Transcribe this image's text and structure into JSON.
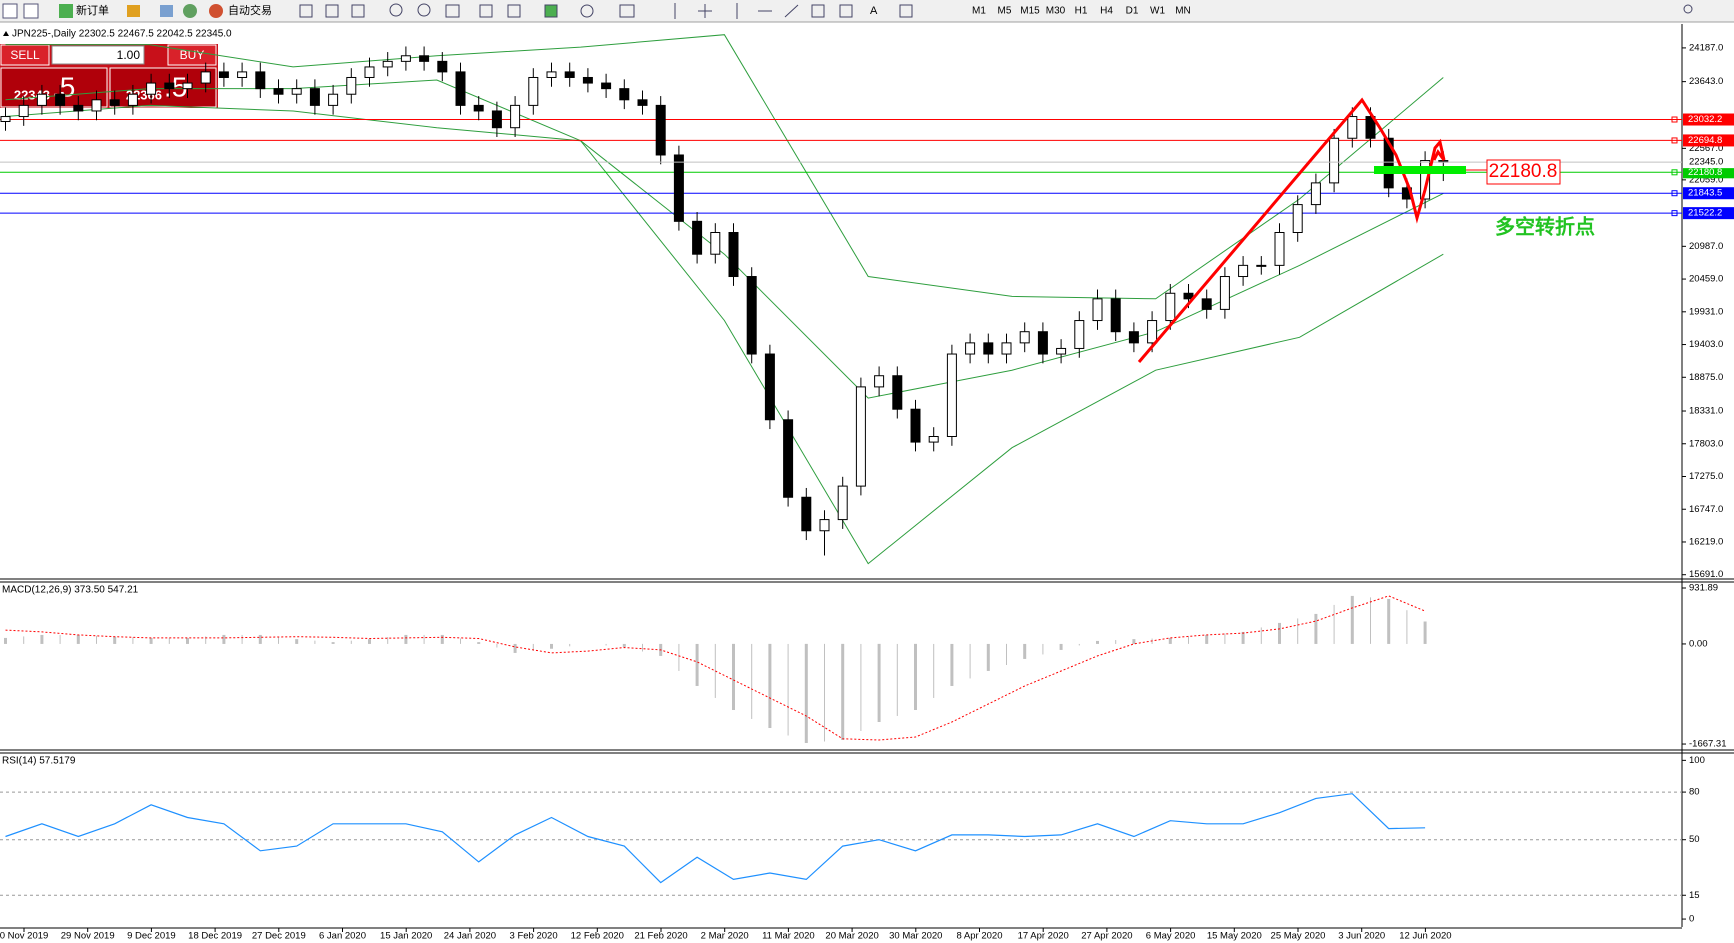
{
  "toolbar": {
    "new_order": "新订单",
    "auto_trading": "自动交易",
    "text_tool": "A",
    "timeframes": [
      "M1",
      "M5",
      "M15",
      "M30",
      "H1",
      "H4",
      "D1",
      "W1",
      "MN"
    ]
  },
  "order_panel": {
    "sell": "SELL",
    "lots": "1.00",
    "buy": "BUY",
    "bid_big": "22343",
    "bid_small": ".5",
    "ask_big": "22366",
    "ask_small": ".5"
  },
  "date_labels": [
    "0 Nov 2019",
    "29 Nov 2019",
    "9 Dec 2019",
    "18 Dec 2019",
    "27 Dec 2019",
    "6 Jan 2020",
    "15 Jan 2020",
    "24 Jan 2020",
    "3 Feb 2020",
    "12 Feb 2020",
    "21 Feb 2020",
    "2 Mar 2020",
    "11 Mar 2020",
    "20 Mar 2020",
    "30 Mar 2020",
    "8 Apr 2020",
    "17 Apr 2020",
    "27 Apr 2020",
    "6 May 2020",
    "15 May 2020",
    "25 May 2020",
    "3 Jun 2020",
    "12 Jun 2020"
  ],
  "annotations": [
    "22180.8",
    "多空转折点"
  ],
  "chart_data": [
    {
      "type": "candlestick",
      "title": "JPN225-,Daily 22302.5 22467.5 22042.5 22345.0",
      "open": [
        23000,
        23080,
        23260,
        23440,
        23260,
        23170,
        23350,
        23260,
        23440,
        23620,
        23530,
        23620,
        23800,
        23710,
        23800,
        23530,
        23440,
        23530,
        23260,
        23440,
        23710,
        23880,
        23970,
        24060,
        23970,
        23800,
        23260,
        23170,
        22900,
        23260,
        23710,
        23800,
        23710,
        23620,
        23530,
        23350,
        23260,
        22460,
        21390,
        20860,
        21210,
        20500,
        19250,
        18190,
        16940,
        16400,
        16580,
        17120,
        18720,
        18900,
        18360,
        17830,
        17920,
        19250,
        19430,
        19250,
        19430,
        19610,
        19250,
        19340,
        19790,
        20140,
        19610,
        19430,
        19790,
        20230,
        20140,
        19970,
        20500,
        20680,
        20680,
        21210,
        21660,
        22010,
        22730,
        23080,
        22730,
        21930,
        21750,
        22370
      ],
      "high": [
        23230,
        23410,
        23590,
        23590,
        23410,
        23500,
        23500,
        23590,
        23770,
        23770,
        23770,
        23950,
        23950,
        23950,
        23950,
        23680,
        23680,
        23680,
        23590,
        23860,
        24030,
        24120,
        24210,
        24210,
        24120,
        23950,
        23410,
        23320,
        23410,
        23860,
        23950,
        23950,
        23860,
        23770,
        23680,
        23500,
        23410,
        22610,
        21540,
        21360,
        21360,
        20650,
        19400,
        18340,
        17090,
        16730,
        17270,
        18870,
        19050,
        19050,
        18510,
        18070,
        19400,
        19580,
        19580,
        19580,
        19760,
        19760,
        19490,
        19940,
        20290,
        20290,
        19760,
        19940,
        20380,
        20380,
        20290,
        20650,
        20830,
        20830,
        21360,
        21810,
        22160,
        22880,
        23230,
        23230,
        22880,
        22080,
        22520,
        22520
      ],
      "low": [
        22850,
        22930,
        23110,
        23110,
        23020,
        23020,
        23110,
        23110,
        23290,
        23380,
        23380,
        23470,
        23560,
        23560,
        23380,
        23290,
        23290,
        23110,
        23110,
        23290,
        23560,
        23730,
        23820,
        23820,
        23650,
        23110,
        23020,
        22750,
        22750,
        23110,
        23560,
        23560,
        23470,
        23380,
        23200,
        23110,
        22310,
        21240,
        20710,
        20710,
        20350,
        19100,
        18040,
        16790,
        16250,
        16000,
        16430,
        16970,
        18570,
        18210,
        17680,
        17680,
        17770,
        19100,
        19100,
        19100,
        19280,
        19100,
        19100,
        19190,
        19640,
        19460,
        19280,
        19280,
        19640,
        19990,
        19820,
        19820,
        20350,
        20530,
        20530,
        21060,
        21510,
        21860,
        22580,
        22580,
        21780,
        21600,
        21600,
        22040
      ],
      "close": [
        23080,
        23260,
        23440,
        23260,
        23170,
        23350,
        23260,
        23440,
        23620,
        23530,
        23620,
        23800,
        23710,
        23800,
        23530,
        23440,
        23530,
        23260,
        23440,
        23710,
        23880,
        23970,
        24060,
        23970,
        23800,
        23260,
        23170,
        22900,
        23260,
        23710,
        23800,
        23710,
        23620,
        23530,
        23350,
        23260,
        22460,
        21390,
        20860,
        21210,
        20500,
        19250,
        18190,
        16940,
        16400,
        16580,
        17120,
        18720,
        18900,
        18360,
        17830,
        17920,
        19250,
        19430,
        19250,
        19430,
        19610,
        19250,
        19340,
        19790,
        20140,
        19610,
        19430,
        19790,
        20230,
        20140,
        19970,
        20500,
        20680,
        20680,
        21210,
        21660,
        22010,
        22730,
        23080,
        22730,
        21930,
        21750,
        22370,
        22345
      ],
      "bollinger": {
        "color": "#2e9e3e",
        "upper": [
          24240,
          24240,
          23880,
          24060,
          24200,
          24400,
          20500,
          20180,
          20140,
          21750,
          23710
        ],
        "middle": [
          23350,
          23530,
          23530,
          23670,
          22690,
          20860,
          18540,
          18990,
          19610,
          20680,
          21840
        ],
        "lower": [
          23080,
          23260,
          23170,
          22900,
          22690,
          19790,
          15870,
          17740,
          18990,
          19520,
          20860
        ]
      },
      "ylim": [
        15638,
        24508
      ],
      "yticks": [
        {
          "value": 24187,
          "label": "24187.0"
        },
        {
          "value": 23643,
          "label": "23643.0"
        },
        {
          "value": 22567,
          "label": "22567.0"
        },
        {
          "value": 22059,
          "label": "22059.0"
        },
        {
          "value": 20987,
          "label": "20987.0"
        },
        {
          "value": 20459,
          "label": "20459.0"
        },
        {
          "value": 19931,
          "label": "19931.0"
        },
        {
          "value": 19403,
          "label": "19403.0"
        },
        {
          "value": 18875,
          "label": "18875.0"
        },
        {
          "value": 18331,
          "label": "18331.0"
        },
        {
          "value": 17803,
          "label": "17803.0"
        },
        {
          "value": 17275,
          "label": "17275.0"
        },
        {
          "value": 16747,
          "label": "16747.0"
        },
        {
          "value": 16219,
          "label": "16219.0"
        },
        {
          "value": 15691,
          "label": "15691.0"
        }
      ],
      "levels": [
        {
          "value": 23032.2,
          "label": "23032.2",
          "color": "#ff0000"
        },
        {
          "value": 22694.8,
          "label": "22694.8",
          "color": "#ff0000"
        },
        {
          "value": 22180.8,
          "label": "22180.8",
          "color": "#00cc00"
        },
        {
          "value": 21843.5,
          "label": "21843.5",
          "color": "#0000ff"
        },
        {
          "value": 21522.2,
          "label": "21522.2",
          "color": "#0000ff"
        }
      ],
      "current_price": {
        "value": 22345,
        "label": "22345.0"
      }
    },
    {
      "type": "macd",
      "title": "MACD(12,26,9) 373.50 547.21",
      "histogram": [
        100,
        150,
        150,
        120,
        100,
        100,
        150,
        150,
        80,
        30,
        80,
        150,
        150,
        30,
        -150,
        -80,
        0,
        -50,
        -200,
        -700,
        -1100,
        -1400,
        -1650,
        -1600,
        -1300,
        -1100,
        -700,
        -450,
        -250,
        -100,
        50,
        80,
        100,
        150,
        200,
        350,
        500,
        800,
        750,
        373.5
      ],
      "signal": [
        230,
        200,
        150,
        120,
        100,
        100,
        100,
        110,
        120,
        110,
        90,
        100,
        110,
        90,
        -50,
        -150,
        -120,
        -60,
        -100,
        -300,
        -600,
        -900,
        -1200,
        -1580,
        -1600,
        -1550,
        -1300,
        -1000,
        -700,
        -450,
        -200,
        0,
        100,
        150,
        180,
        250,
        380,
        600,
        800,
        547.21
      ],
      "histogram_color": "#c0c0c0",
      "signal_color": "#ff0000",
      "ylim": [
        -1750,
        1015
      ],
      "yticks": [
        931.89,
        {
          "value": 0,
          "label": "0.00"
        },
        -1667.31
      ]
    },
    {
      "type": "rsi",
      "title": "RSI(14) 57.5179",
      "values": [
        52,
        60,
        52,
        60,
        72,
        64,
        60,
        43,
        46,
        60,
        60,
        60,
        55,
        36,
        53,
        64,
        52,
        46,
        23,
        39,
        25,
        29,
        25,
        46,
        50,
        43,
        53,
        53,
        52,
        53,
        60,
        52,
        62,
        60,
        60,
        67,
        76,
        79,
        57,
        57.5179
      ],
      "color": "#1e90ff",
      "ylim": [
        -5,
        104
      ],
      "yticks": [
        100,
        80,
        50,
        15,
        0
      ],
      "levels": [
        80,
        50,
        15
      ]
    }
  ]
}
